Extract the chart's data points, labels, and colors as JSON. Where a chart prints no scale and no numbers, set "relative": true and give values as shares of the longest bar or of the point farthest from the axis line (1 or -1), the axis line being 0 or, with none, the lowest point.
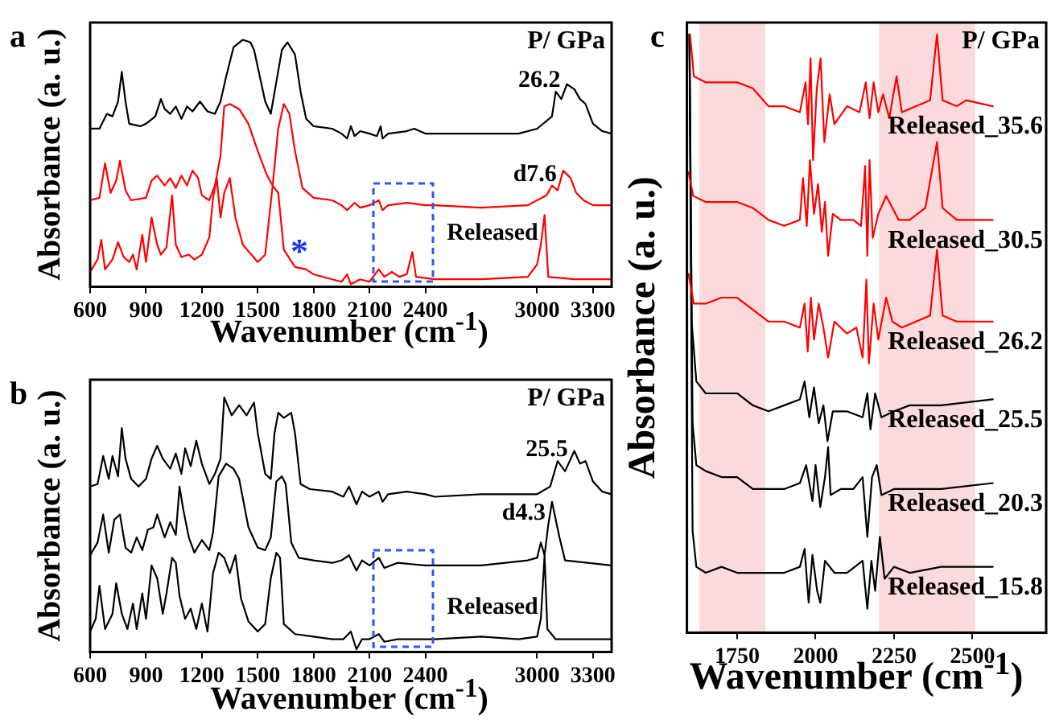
{
  "chart_data": [
    {
      "type": "line",
      "title": "a",
      "xlabel": "Wavenumber (cm$^{-1}$)",
      "ylabel": "Absorbance (a. u.)",
      "legend_title": "P/ GPa",
      "relative": true,
      "xlim": [
        600,
        3400
      ],
      "xticks": [
        600,
        900,
        1200,
        1500,
        1800,
        2100,
        2400,
        3000,
        3300
      ],
      "annotations": [
        "*"
      ],
      "series": [
        {
          "name": "26.2",
          "color": "#000000",
          "x": [
            600,
            650,
            690,
            720,
            750,
            770,
            790,
            810,
            870,
            900,
            950,
            980,
            1000,
            1030,
            1060,
            1090,
            1120,
            1150,
            1190,
            1230,
            1270,
            1300,
            1330,
            1370,
            1420,
            1460,
            1480,
            1500,
            1540,
            1570,
            1600,
            1630,
            1660,
            1700,
            1730,
            1760,
            1800,
            1900,
            1950,
            1980,
            2000,
            2020,
            2050,
            2100,
            2140,
            2160,
            2170,
            2200,
            2300,
            2340,
            2400,
            2450,
            2700,
            2900,
            3000,
            3080,
            3100,
            3130,
            3160,
            3200,
            3230,
            3260,
            3300,
            3350,
            3400
          ],
          "values": [
            0.64,
            0.64,
            0.7,
            0.69,
            0.75,
            0.87,
            0.75,
            0.66,
            0.65,
            0.66,
            0.69,
            0.76,
            0.72,
            0.7,
            0.73,
            0.68,
            0.73,
            0.71,
            0.75,
            0.71,
            0.7,
            0.75,
            0.85,
            0.97,
            1.0,
            0.99,
            0.96,
            0.89,
            0.75,
            0.7,
            0.83,
            0.96,
            0.99,
            0.94,
            0.79,
            0.68,
            0.65,
            0.64,
            0.62,
            0.6,
            0.65,
            0.61,
            0.63,
            0.62,
            0.61,
            0.65,
            0.6,
            0.62,
            0.63,
            0.64,
            0.62,
            0.62,
            0.62,
            0.62,
            0.64,
            0.69,
            0.79,
            0.76,
            0.82,
            0.8,
            0.76,
            0.74,
            0.66,
            0.63,
            0.62
          ]
        },
        {
          "name": "d7.6",
          "color": "#ff0000",
          "x": [
            600,
            650,
            680,
            710,
            740,
            760,
            790,
            820,
            900,
            930,
            960,
            1000,
            1030,
            1060,
            1090,
            1120,
            1150,
            1180,
            1200,
            1240,
            1270,
            1300,
            1320,
            1350,
            1400,
            1450,
            1500,
            1550,
            1580,
            1610,
            1640,
            1670,
            1700,
            1740,
            1800,
            1900,
            1950,
            1980,
            2020,
            2050,
            2100,
            2150,
            2170,
            2200,
            2300,
            2400,
            2450,
            2700,
            2950,
            3050,
            3080,
            3110,
            3140,
            3180,
            3210,
            3250,
            3300,
            3400
          ],
          "values": [
            0.35,
            0.36,
            0.5,
            0.38,
            0.43,
            0.51,
            0.39,
            0.35,
            0.36,
            0.43,
            0.45,
            0.41,
            0.44,
            0.4,
            0.45,
            0.41,
            0.47,
            0.44,
            0.37,
            0.35,
            0.41,
            0.53,
            0.73,
            0.74,
            0.72,
            0.66,
            0.55,
            0.45,
            0.41,
            0.64,
            0.74,
            0.7,
            0.55,
            0.4,
            0.36,
            0.35,
            0.33,
            0.31,
            0.34,
            0.32,
            0.33,
            0.35,
            0.31,
            0.33,
            0.34,
            0.33,
            0.33,
            0.32,
            0.33,
            0.37,
            0.41,
            0.39,
            0.47,
            0.44,
            0.38,
            0.35,
            0.33,
            0.33
          ]
        },
        {
          "name": "Released",
          "color": "#ff0000",
          "x": [
            600,
            640,
            660,
            680,
            720,
            750,
            780,
            810,
            830,
            850,
            880,
            900,
            930,
            960,
            980,
            1010,
            1040,
            1060,
            1090,
            1130,
            1160,
            1200,
            1240,
            1260,
            1280,
            1300,
            1320,
            1350,
            1380,
            1420,
            1500,
            1540,
            1580,
            1610,
            1640,
            1700,
            1760,
            1800,
            1900,
            1950,
            1980,
            2000,
            2050,
            2100,
            2150,
            2180,
            2220,
            2260,
            2300,
            2330,
            2350,
            2450,
            2700,
            2950,
            3000,
            3020,
            3040,
            3060,
            3200,
            3400
          ],
          "values": [
            0.06,
            0.11,
            0.19,
            0.07,
            0.11,
            0.18,
            0.12,
            0.1,
            0.13,
            0.07,
            0.21,
            0.1,
            0.28,
            0.17,
            0.13,
            0.16,
            0.37,
            0.17,
            0.12,
            0.13,
            0.11,
            0.13,
            0.2,
            0.36,
            0.44,
            0.28,
            0.38,
            0.44,
            0.28,
            0.17,
            0.1,
            0.13,
            0.41,
            0.38,
            0.15,
            0.08,
            0.07,
            0.05,
            0.03,
            0.02,
            0.05,
            0.01,
            0.03,
            0.02,
            0.07,
            0.04,
            0.06,
            0.04,
            0.05,
            0.14,
            0.04,
            0.03,
            0.03,
            0.04,
            0.09,
            0.17,
            0.29,
            0.04,
            0.03,
            0.03
          ]
        }
      ]
    },
    {
      "type": "line",
      "title": "b",
      "xlabel": "Wavenumber (cm$^{-1}$)",
      "ylabel": "Absorbance (a. u.)",
      "legend_title": "P/ GPa",
      "relative": true,
      "xlim": [
        600,
        3400
      ],
      "xticks": [
        600,
        900,
        1200,
        1500,
        1800,
        2100,
        2400,
        3000,
        3300
      ],
      "series": [
        {
          "name": "25.5",
          "color": "#000000",
          "x": [
            600,
            640,
            670,
            700,
            720,
            750,
            770,
            790,
            820,
            860,
            900,
            930,
            960,
            990,
            1030,
            1060,
            1090,
            1110,
            1140,
            1170,
            1200,
            1240,
            1270,
            1300,
            1320,
            1360,
            1400,
            1440,
            1480,
            1500,
            1540,
            1570,
            1590,
            1610,
            1640,
            1680,
            1700,
            1730,
            1780,
            1900,
            1960,
            1990,
            2030,
            2060,
            2100,
            2150,
            2170,
            2200,
            2300,
            2400,
            2450,
            2700,
            3000,
            3070,
            3110,
            3150,
            3200,
            3230,
            3260,
            3300,
            3350,
            3400
          ],
          "values": [
            0.65,
            0.66,
            0.77,
            0.68,
            0.77,
            0.69,
            0.88,
            0.76,
            0.68,
            0.65,
            0.68,
            0.76,
            0.81,
            0.76,
            0.72,
            0.78,
            0.7,
            0.8,
            0.73,
            0.83,
            0.74,
            0.66,
            0.7,
            0.76,
            1.0,
            0.93,
            0.97,
            0.93,
            0.98,
            0.86,
            0.7,
            0.68,
            0.86,
            0.94,
            0.92,
            0.94,
            0.86,
            0.66,
            0.64,
            0.63,
            0.61,
            0.65,
            0.58,
            0.63,
            0.61,
            0.63,
            0.59,
            0.62,
            0.63,
            0.62,
            0.61,
            0.62,
            0.62,
            0.65,
            0.75,
            0.71,
            0.79,
            0.74,
            0.75,
            0.67,
            0.63,
            0.62
          ]
        },
        {
          "name": "d4.3",
          "color": "#000000",
          "x": [
            600,
            640,
            670,
            700,
            730,
            760,
            790,
            820,
            850,
            880,
            910,
            940,
            960,
            1000,
            1030,
            1060,
            1080,
            1100,
            1130,
            1160,
            1200,
            1240,
            1260,
            1290,
            1330,
            1370,
            1400,
            1450,
            1500,
            1540,
            1570,
            1600,
            1630,
            1650,
            1680,
            1720,
            1800,
            1900,
            1950,
            1990,
            2030,
            2060,
            2100,
            2150,
            2180,
            2250,
            2400,
            2450,
            2700,
            2950,
            3000,
            3020,
            3040,
            3060,
            3080,
            3100,
            3120,
            3150,
            3400
          ],
          "values": [
            0.38,
            0.43,
            0.54,
            0.39,
            0.52,
            0.54,
            0.41,
            0.39,
            0.45,
            0.4,
            0.48,
            0.49,
            0.54,
            0.45,
            0.51,
            0.46,
            0.65,
            0.56,
            0.45,
            0.39,
            0.44,
            0.4,
            0.47,
            0.69,
            0.74,
            0.72,
            0.68,
            0.49,
            0.41,
            0.4,
            0.45,
            0.67,
            0.69,
            0.66,
            0.43,
            0.37,
            0.36,
            0.35,
            0.36,
            0.38,
            0.32,
            0.36,
            0.34,
            0.37,
            0.33,
            0.35,
            0.34,
            0.34,
            0.34,
            0.36,
            0.37,
            0.43,
            0.38,
            0.5,
            0.59,
            0.52,
            0.45,
            0.36,
            0.34
          ]
        },
        {
          "name": "Released",
          "color": "#000000",
          "x": [
            600,
            630,
            650,
            680,
            720,
            740,
            770,
            800,
            830,
            850,
            880,
            900,
            930,
            960,
            990,
            1010,
            1040,
            1060,
            1080,
            1110,
            1140,
            1170,
            1200,
            1230,
            1260,
            1290,
            1320,
            1350,
            1380,
            1410,
            1450,
            1500,
            1540,
            1570,
            1600,
            1620,
            1640,
            1700,
            1800,
            1900,
            1960,
            2000,
            2030,
            2060,
            2100,
            2150,
            2180,
            2250,
            2400,
            2450,
            2700,
            2900,
            3000,
            3020,
            3040,
            3055,
            3100,
            3400
          ],
          "values": [
            0.08,
            0.13,
            0.26,
            0.09,
            0.15,
            0.27,
            0.15,
            0.09,
            0.19,
            0.09,
            0.23,
            0.13,
            0.34,
            0.29,
            0.15,
            0.23,
            0.37,
            0.35,
            0.22,
            0.13,
            0.17,
            0.09,
            0.19,
            0.08,
            0.31,
            0.39,
            0.37,
            0.31,
            0.38,
            0.21,
            0.12,
            0.08,
            0.11,
            0.29,
            0.39,
            0.37,
            0.11,
            0.07,
            0.06,
            0.05,
            0.05,
            0.08,
            0.01,
            0.05,
            0.05,
            0.07,
            0.04,
            0.05,
            0.05,
            0.05,
            0.06,
            0.05,
            0.06,
            0.13,
            0.38,
            0.09,
            0.05,
            0.05
          ]
        }
      ]
    },
    {
      "type": "line",
      "title": "c",
      "xlabel": "Wavenumber (cm$^{-1}$)",
      "ylabel": "Absorbance (a. u.)",
      "legend_title": "P/ GPa",
      "relative": true,
      "xlim": [
        1590,
        2735
      ],
      "xticks": [
        1750,
        2000,
        2250,
        2500
      ],
      "bands": [
        {
          "axis": "x",
          "from": 1630,
          "to": 1840,
          "color": "#fadada"
        },
        {
          "axis": "x",
          "from": 2202,
          "to": 2508,
          "color": "#fadada"
        }
      ],
      "series": [
        {
          "name": "Released_35.6",
          "color": "#ff0000",
          "x": [
            1600,
            1612,
            1650,
            1750,
            1800,
            1850,
            1900,
            1950,
            1968,
            1976,
            1984,
            1992,
            2004,
            2016,
            2028,
            2045,
            2060,
            2100,
            2140,
            2160,
            2172,
            2185,
            2200,
            2215,
            2235,
            2258,
            2275,
            2320,
            2365,
            2387,
            2405,
            2450,
            2480,
            2565
          ],
          "values": [
            1.0,
            0.93,
            0.92,
            0.92,
            0.91,
            0.88,
            0.88,
            0.87,
            0.92,
            0.85,
            0.96,
            0.79,
            0.91,
            0.96,
            0.82,
            0.9,
            0.85,
            0.88,
            0.87,
            0.92,
            0.86,
            0.92,
            0.87,
            0.9,
            0.86,
            0.93,
            0.87,
            0.88,
            0.89,
            1.0,
            0.89,
            0.88,
            0.89,
            0.88
          ]
        },
        {
          "name": "Released_30.5",
          "color": "#ff0000",
          "x": [
            1595,
            1610,
            1650,
            1700,
            1750,
            1800,
            1850,
            1900,
            1950,
            1960,
            1972,
            1982,
            1995,
            2008,
            2020,
            2030,
            2040,
            2055,
            2080,
            2120,
            2145,
            2158,
            2165,
            2172,
            2182,
            2200,
            2225,
            2245,
            2265,
            2300,
            2350,
            2387,
            2405,
            2450,
            2500,
            2565
          ],
          "values": [
            0.77,
            0.73,
            0.72,
            0.72,
            0.72,
            0.71,
            0.69,
            0.68,
            0.69,
            0.76,
            0.68,
            0.79,
            0.7,
            0.75,
            0.67,
            0.72,
            0.63,
            0.7,
            0.69,
            0.69,
            0.68,
            0.78,
            0.63,
            0.79,
            0.66,
            0.7,
            0.73,
            0.71,
            0.69,
            0.69,
            0.71,
            0.82,
            0.71,
            0.69,
            0.69,
            0.69
          ]
        },
        {
          "name": "Released_26.2",
          "color": "#ff0000",
          "x": [
            1595,
            1612,
            1650,
            1700,
            1750,
            1800,
            1850,
            1900,
            1950,
            1965,
            1975,
            1985,
            1995,
            2010,
            2025,
            2040,
            2060,
            2100,
            2130,
            2150,
            2162,
            2170,
            2185,
            2200,
            2225,
            2245,
            2275,
            2320,
            2365,
            2387,
            2405,
            2450,
            2565
          ],
          "values": [
            0.6,
            0.55,
            0.55,
            0.56,
            0.56,
            0.54,
            0.52,
            0.52,
            0.51,
            0.55,
            0.47,
            0.56,
            0.49,
            0.55,
            0.51,
            0.46,
            0.52,
            0.5,
            0.51,
            0.46,
            0.59,
            0.45,
            0.55,
            0.49,
            0.56,
            0.52,
            0.51,
            0.52,
            0.53,
            0.64,
            0.53,
            0.52,
            0.52
          ]
        },
        {
          "name": "Released_25.5",
          "color": "#000000",
          "x": [
            1598,
            1605,
            1620,
            1650,
            1700,
            1750,
            1800,
            1850,
            1900,
            1950,
            1965,
            1980,
            1995,
            2010,
            2025,
            2038,
            2055,
            2100,
            2150,
            2165,
            2175,
            2190,
            2210,
            2250,
            2300,
            2400,
            2565
          ],
          "values": [
            1.0,
            0.52,
            0.42,
            0.4,
            0.4,
            0.4,
            0.38,
            0.37,
            0.38,
            0.39,
            0.42,
            0.36,
            0.41,
            0.35,
            0.38,
            0.32,
            0.37,
            0.37,
            0.36,
            0.4,
            0.34,
            0.4,
            0.36,
            0.37,
            0.38,
            0.38,
            0.39
          ]
        },
        {
          "name": "Released_20.3",
          "color": "#000000",
          "x": [
            1598,
            1608,
            1620,
            1650,
            1700,
            1750,
            1800,
            1850,
            1900,
            1950,
            1970,
            1990,
            2000,
            2015,
            2030,
            2040,
            2048,
            2080,
            2120,
            2150,
            2165,
            2180,
            2195,
            2210,
            2250,
            2300,
            2400,
            2565
          ],
          "values": [
            1.0,
            0.35,
            0.28,
            0.27,
            0.26,
            0.26,
            0.24,
            0.24,
            0.24,
            0.25,
            0.28,
            0.22,
            0.28,
            0.21,
            0.26,
            0.31,
            0.23,
            0.24,
            0.24,
            0.26,
            0.16,
            0.26,
            0.28,
            0.23,
            0.24,
            0.24,
            0.24,
            0.25
          ]
        },
        {
          "name": "Released_15.8",
          "color": "#000000",
          "x": [
            1598,
            1608,
            1620,
            1650,
            1700,
            1750,
            1800,
            1850,
            1900,
            1950,
            1965,
            1978,
            1990,
            2005,
            2015,
            2030,
            2060,
            2100,
            2150,
            2165,
            2178,
            2190,
            2205,
            2220,
            2250,
            2300,
            2400,
            2565
          ],
          "values": [
            1.0,
            0.17,
            0.11,
            0.1,
            0.11,
            0.1,
            0.1,
            0.1,
            0.1,
            0.11,
            0.14,
            0.05,
            0.13,
            0.07,
            0.05,
            0.12,
            0.1,
            0.1,
            0.12,
            0.04,
            0.12,
            0.07,
            0.16,
            0.09,
            0.11,
            0.1,
            0.11,
            0.11
          ]
        }
      ]
    }
  ]
}
